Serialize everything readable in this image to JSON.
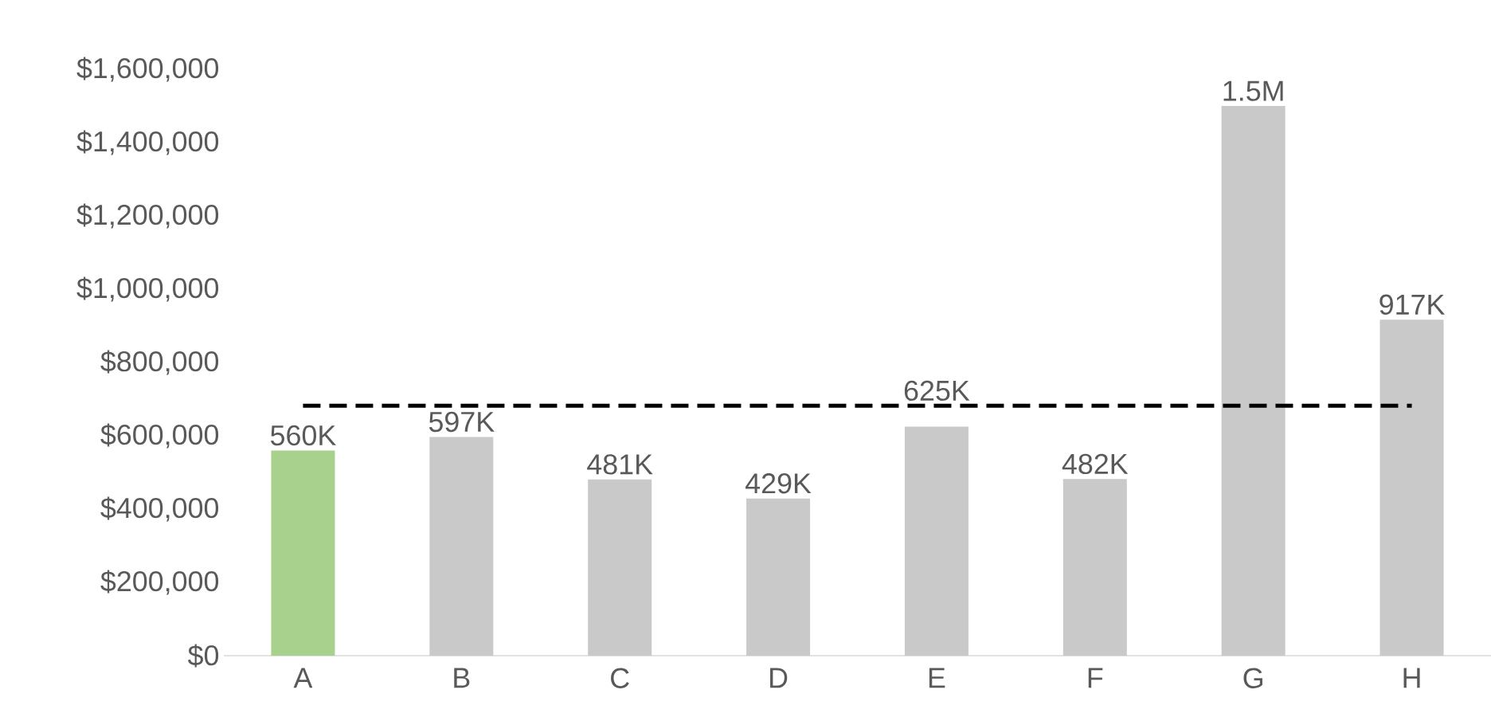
{
  "chart_data": {
    "type": "bar",
    "categories": [
      "A",
      "B",
      "C",
      "D",
      "E",
      "F",
      "G",
      "H"
    ],
    "values": [
      560000,
      597000,
      481000,
      429000,
      625000,
      482000,
      1500000,
      917000
    ],
    "colors": [
      "#a9d18e",
      "#c9c9c9",
      "#c9c9c9",
      "#c9c9c9",
      "#c9c9c9",
      "#c9c9c9",
      "#c9c9c9",
      "#c9c9c9"
    ],
    "value_labels": [
      "560K",
      "597K",
      "481K",
      "429K",
      "625K",
      "482K",
      "1.5M",
      "917K"
    ],
    "ylim": [
      0,
      1600000
    ],
    "yticks": [
      {
        "value": 0,
        "label": "$0"
      },
      {
        "value": 200000,
        "label": "$200,000"
      },
      {
        "value": 400000,
        "label": "$400,000"
      },
      {
        "value": 600000,
        "label": "$600,000"
      },
      {
        "value": 800000,
        "label": "$800,000"
      },
      {
        "value": 1000000,
        "label": "$1,000,000"
      },
      {
        "value": 1200000,
        "label": "$1,200,000"
      },
      {
        "value": 1400000,
        "label": "$1,400,000"
      },
      {
        "value": 1600000,
        "label": "$1,600,000"
      }
    ],
    "ref_lines": [
      {
        "axis": "y",
        "value": 682000,
        "color": "#000000",
        "line_style": "dashed"
      }
    ],
    "grid": false
  }
}
